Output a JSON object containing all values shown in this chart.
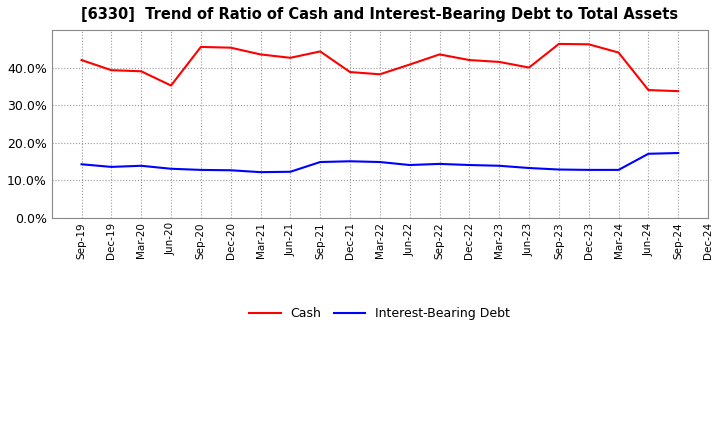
{
  "title": "[6330]  Trend of Ratio of Cash and Interest-Bearing Debt to Total Assets",
  "x_labels": [
    "Sep-19",
    "Dec-19",
    "Mar-20",
    "Jun-20",
    "Sep-20",
    "Dec-20",
    "Mar-21",
    "Jun-21",
    "Sep-21",
    "Dec-21",
    "Mar-22",
    "Jun-22",
    "Sep-22",
    "Dec-22",
    "Mar-23",
    "Jun-23",
    "Sep-23",
    "Dec-23",
    "Mar-24",
    "Jun-24",
    "Sep-24",
    "Dec-24"
  ],
  "cash": [
    0.42,
    0.393,
    0.39,
    0.352,
    0.455,
    0.453,
    0.435,
    0.426,
    0.443,
    0.388,
    0.382,
    0.408,
    0.435,
    0.42,
    0.415,
    0.4,
    0.463,
    0.462,
    0.44,
    0.34,
    0.337,
    null
  ],
  "debt": [
    0.142,
    0.135,
    0.138,
    0.13,
    0.127,
    0.126,
    0.121,
    0.122,
    0.148,
    0.15,
    0.148,
    0.14,
    0.143,
    0.14,
    0.138,
    0.132,
    0.128,
    0.127,
    0.127,
    0.17,
    0.172,
    null
  ],
  "cash_color": "#FF0000",
  "debt_color": "#0000FF",
  "background_color": "#FFFFFF",
  "plot_bg_color": "#FFFFFF",
  "ylim": [
    0.0,
    0.5
  ],
  "yticks": [
    0.0,
    0.1,
    0.2,
    0.3,
    0.4
  ],
  "legend_labels": [
    "Cash",
    "Interest-Bearing Debt"
  ],
  "grid_color": "#999999"
}
